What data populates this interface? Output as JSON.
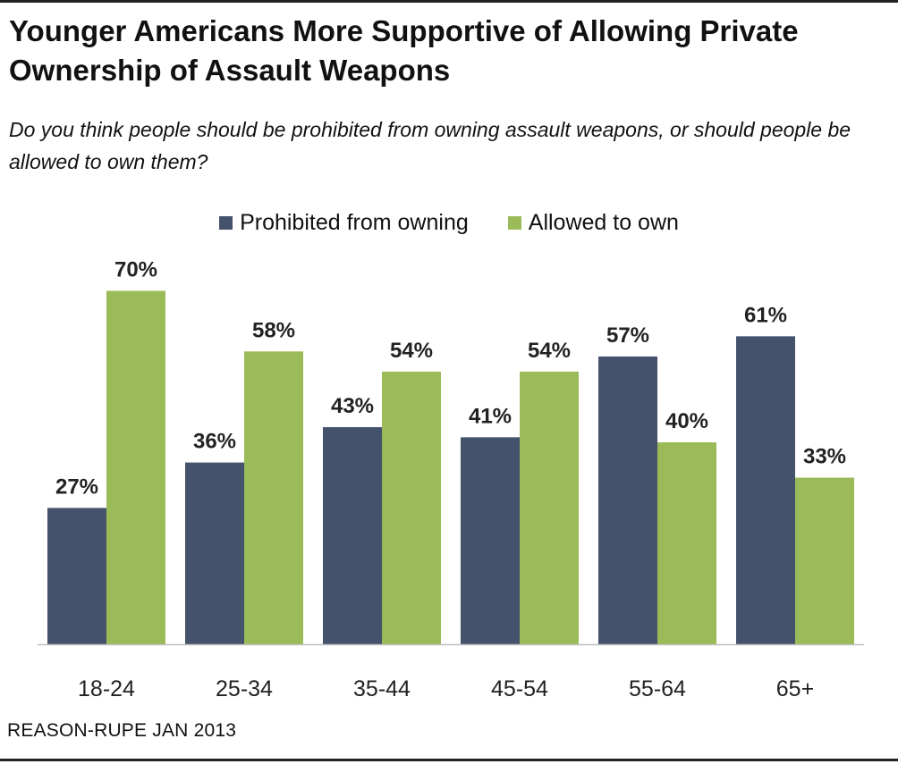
{
  "title": "Younger Americans More Supportive of Allowing Private Ownership of Assault Weapons",
  "subtitle": "Do you think people should be prohibited from owning assault weapons, or should people be allowed to own them?",
  "source": "REASON-RUPE JAN 2013",
  "colors": {
    "prohibited": "#44526b",
    "allowed": "#9bbb59",
    "axis": "#bfbfbf"
  },
  "chart_data": {
    "type": "bar",
    "title": "Younger Americans More Supportive of Allowing Private Ownership of Assault Weapons",
    "xlabel": "",
    "ylabel": "",
    "ylim": [
      0,
      70
    ],
    "grid": false,
    "legend_position": "top-center",
    "categories": [
      "18-24",
      "25-34",
      "35-44",
      "45-54",
      "55-64",
      "65+"
    ],
    "series": [
      {
        "name": "Prohibited from owning",
        "values": [
          27,
          36,
          43,
          41,
          57,
          61
        ],
        "labels": [
          "27%",
          "36%",
          "43%",
          "41%",
          "57%",
          "61%"
        ]
      },
      {
        "name": "Allowed to own",
        "values": [
          70,
          58,
          54,
          54,
          40,
          33
        ],
        "labels": [
          "70%",
          "58%",
          "54%",
          "54%",
          "40%",
          "33%"
        ]
      }
    ]
  }
}
